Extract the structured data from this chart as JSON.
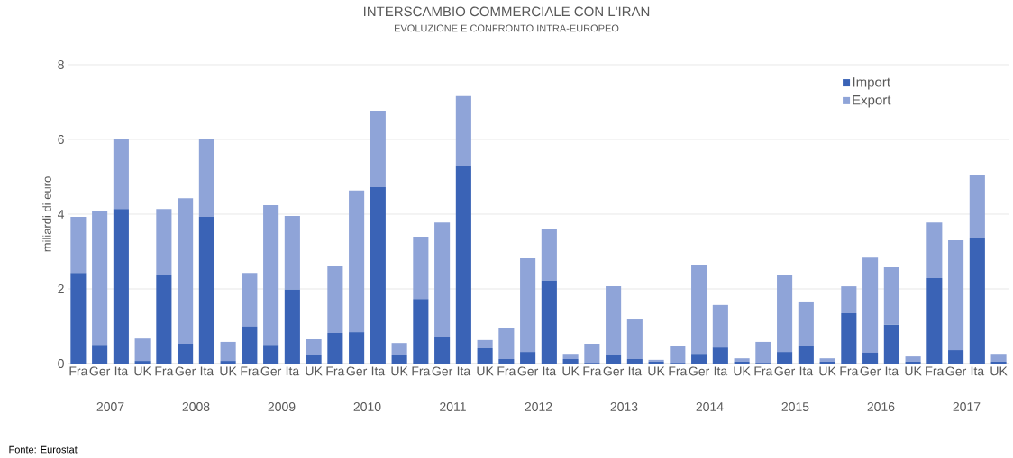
{
  "chart_data": {
    "type": "bar",
    "stacked": true,
    "title": "INTERSCAMBIO COMMERCIALE CON L'IRAN",
    "subtitle": "EVOLUZIONE E CONFRONTO INTRA-EUROPEO",
    "ylabel": "miliardi di euro",
    "categories": [
      "Fra",
      "Ger",
      "Ita",
      "UK",
      "Fra",
      "Ger",
      "Ita",
      "UK",
      "Fra",
      "Ger",
      "Ita",
      "UK",
      "Fra",
      "Ger",
      "Ita",
      "UK",
      "Fra",
      "Ger",
      "Ita",
      "UK",
      "Fra",
      "Ger",
      "Ita",
      "UK",
      "Fra",
      "Ger",
      "Ita",
      "UK",
      "Fra",
      "Ger",
      "Ita",
      "UK",
      "Fra",
      "Ger",
      "Ita",
      "UK",
      "Fra",
      "Ger",
      "Ita",
      "UK",
      "Fra",
      "Ger",
      "Ita",
      "UK"
    ],
    "series": [
      {
        "name": "Import",
        "color": "#3a63b6",
        "values": [
          2.43,
          0.5,
          4.14,
          0.07,
          2.36,
          0.53,
          3.93,
          0.07,
          0.99,
          0.5,
          1.98,
          0.24,
          0.82,
          0.84,
          4.72,
          0.22,
          1.73,
          0.7,
          5.3,
          0.41,
          0.12,
          0.31,
          2.22,
          0.12,
          0.02,
          0.24,
          0.12,
          0.05,
          0.02,
          0.26,
          0.43,
          0.05,
          0.02,
          0.31,
          0.46,
          0.05,
          1.35,
          0.29,
          1.04,
          0.05,
          2.29,
          0.36,
          3.37,
          0.05
        ]
      },
      {
        "name": "Export",
        "color": "#8fa4d8",
        "values": [
          1.5,
          3.57,
          1.86,
          0.6,
          1.78,
          3.9,
          2.09,
          0.51,
          1.44,
          3.74,
          1.97,
          0.41,
          1.78,
          3.79,
          2.05,
          0.33,
          1.67,
          3.08,
          1.86,
          0.22,
          0.82,
          2.51,
          1.39,
          0.14,
          0.51,
          1.83,
          1.06,
          0.05,
          0.46,
          2.39,
          1.14,
          0.09,
          0.56,
          2.05,
          1.18,
          0.09,
          0.72,
          2.55,
          1.54,
          0.14,
          1.49,
          2.94,
          1.69,
          0.21
        ]
      }
    ],
    "ylim": [
      0,
      8
    ],
    "yticks": [
      0,
      2,
      4,
      6,
      8
    ],
    "grid": "y",
    "legend": "top right",
    "annotations": [
      "2007",
      "2008",
      "2009",
      "2010",
      "2011",
      "2012",
      "2013",
      "2014",
      "2015",
      "2016",
      "2017",
      "Fonte: Eurostat"
    ]
  }
}
